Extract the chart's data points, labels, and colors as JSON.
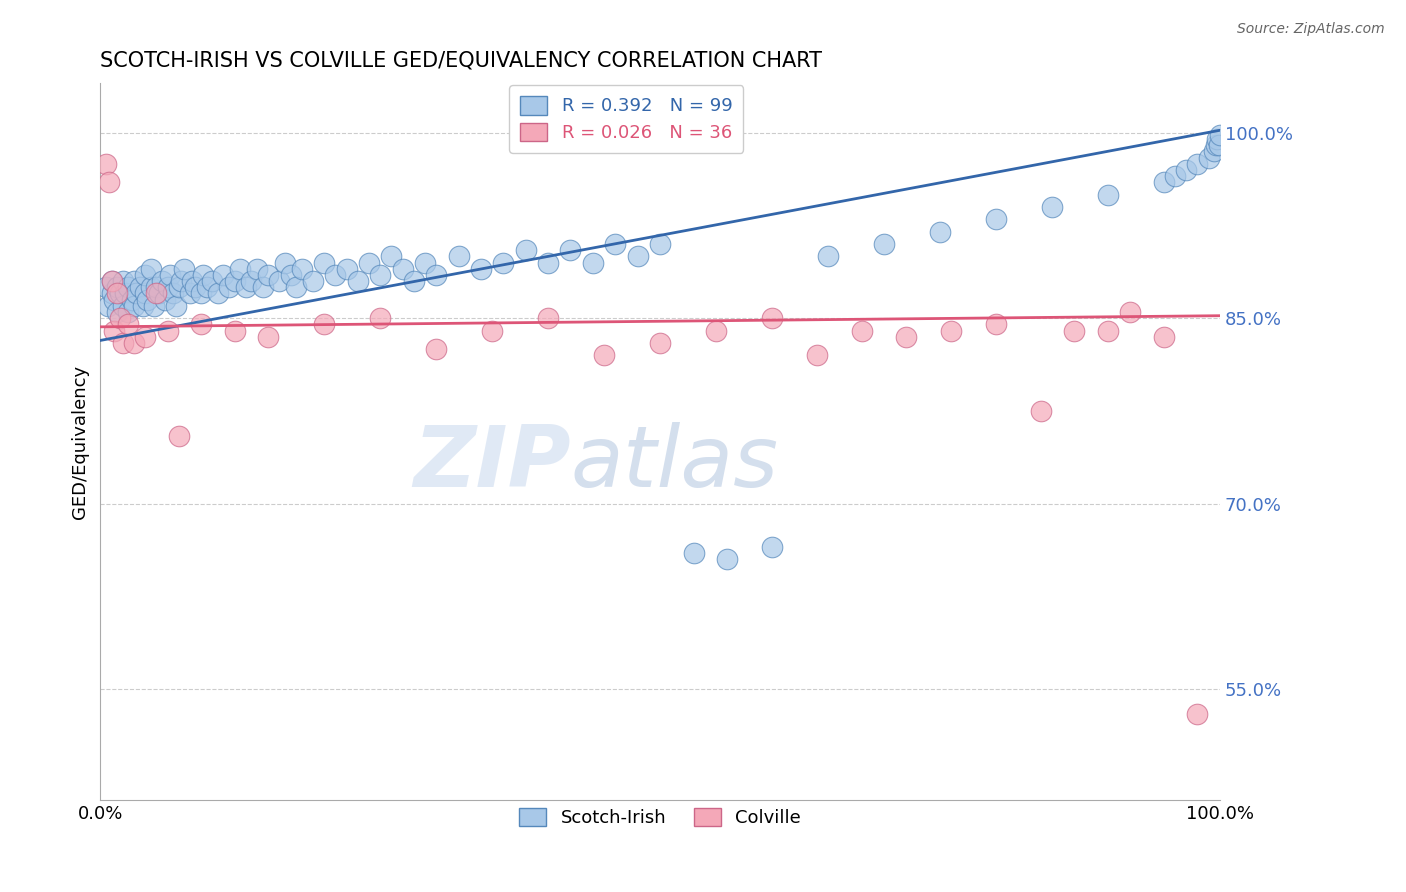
{
  "title": "SCOTCH-IRISH VS COLVILLE GED/EQUIVALENCY CORRELATION CHART",
  "source_text": "Source: ZipAtlas.com",
  "ylabel": "GED/Equivalency",
  "ytick_labels": [
    "55.0%",
    "70.0%",
    "85.0%",
    "100.0%"
  ],
  "ytick_values": [
    0.55,
    0.7,
    0.85,
    1.0
  ],
  "xmin": 0.0,
  "xmax": 1.0,
  "ymin": 0.46,
  "ymax": 1.04,
  "blue_R": 0.392,
  "blue_N": 99,
  "pink_R": 0.026,
  "pink_N": 36,
  "blue_color": "#a8c8e8",
  "pink_color": "#f4a8b8",
  "blue_edge_color": "#5588bb",
  "pink_edge_color": "#cc6688",
  "blue_line_color": "#3366aa",
  "pink_line_color": "#dd5577",
  "legend_label_blue": "Scotch-Irish",
  "legend_label_pink": "Colville",
  "watermark_zip": "ZIP",
  "watermark_atlas": "atlas",
  "title_fontsize": 15,
  "blue_scatter_x": [
    0.005,
    0.007,
    0.01,
    0.01,
    0.012,
    0.015,
    0.015,
    0.018,
    0.02,
    0.02,
    0.022,
    0.025,
    0.025,
    0.028,
    0.03,
    0.03,
    0.032,
    0.035,
    0.038,
    0.04,
    0.04,
    0.042,
    0.045,
    0.045,
    0.048,
    0.05,
    0.052,
    0.055,
    0.058,
    0.06,
    0.062,
    0.065,
    0.068,
    0.07,
    0.072,
    0.075,
    0.08,
    0.082,
    0.085,
    0.09,
    0.092,
    0.095,
    0.1,
    0.105,
    0.11,
    0.115,
    0.12,
    0.125,
    0.13,
    0.135,
    0.14,
    0.145,
    0.15,
    0.16,
    0.165,
    0.17,
    0.175,
    0.18,
    0.19,
    0.2,
    0.21,
    0.22,
    0.23,
    0.24,
    0.25,
    0.26,
    0.27,
    0.28,
    0.29,
    0.3,
    0.32,
    0.34,
    0.36,
    0.38,
    0.4,
    0.42,
    0.44,
    0.46,
    0.48,
    0.5,
    0.53,
    0.56,
    0.6,
    0.65,
    0.7,
    0.75,
    0.8,
    0.85,
    0.9,
    0.95,
    0.96,
    0.97,
    0.98,
    0.99,
    0.995,
    0.997,
    0.998,
    0.999,
    1.0
  ],
  "blue_scatter_y": [
    0.875,
    0.86,
    0.87,
    0.88,
    0.865,
    0.855,
    0.875,
    0.87,
    0.86,
    0.88,
    0.87,
    0.855,
    0.875,
    0.865,
    0.86,
    0.88,
    0.87,
    0.875,
    0.86,
    0.87,
    0.885,
    0.865,
    0.875,
    0.89,
    0.86,
    0.875,
    0.87,
    0.88,
    0.865,
    0.875,
    0.885,
    0.87,
    0.86,
    0.875,
    0.88,
    0.89,
    0.87,
    0.88,
    0.875,
    0.87,
    0.885,
    0.875,
    0.88,
    0.87,
    0.885,
    0.875,
    0.88,
    0.89,
    0.875,
    0.88,
    0.89,
    0.875,
    0.885,
    0.88,
    0.895,
    0.885,
    0.875,
    0.89,
    0.88,
    0.895,
    0.885,
    0.89,
    0.88,
    0.895,
    0.885,
    0.9,
    0.89,
    0.88,
    0.895,
    0.885,
    0.9,
    0.89,
    0.895,
    0.905,
    0.895,
    0.905,
    0.895,
    0.91,
    0.9,
    0.91,
    0.66,
    0.655,
    0.665,
    0.9,
    0.91,
    0.92,
    0.93,
    0.94,
    0.95,
    0.96,
    0.965,
    0.97,
    0.975,
    0.98,
    0.985,
    0.99,
    0.995,
    0.99,
    0.998
  ],
  "pink_scatter_x": [
    0.005,
    0.008,
    0.01,
    0.012,
    0.015,
    0.018,
    0.02,
    0.025,
    0.03,
    0.04,
    0.05,
    0.06,
    0.07,
    0.09,
    0.12,
    0.15,
    0.2,
    0.25,
    0.3,
    0.35,
    0.4,
    0.45,
    0.5,
    0.55,
    0.6,
    0.64,
    0.68,
    0.72,
    0.76,
    0.8,
    0.84,
    0.87,
    0.9,
    0.92,
    0.95,
    0.98
  ],
  "pink_scatter_y": [
    0.975,
    0.96,
    0.88,
    0.84,
    0.87,
    0.85,
    0.83,
    0.845,
    0.83,
    0.835,
    0.87,
    0.84,
    0.755,
    0.845,
    0.84,
    0.835,
    0.845,
    0.85,
    0.825,
    0.84,
    0.85,
    0.82,
    0.83,
    0.84,
    0.85,
    0.82,
    0.84,
    0.835,
    0.84,
    0.845,
    0.775,
    0.84,
    0.84,
    0.855,
    0.835,
    0.53
  ],
  "blue_line_start_y": 0.832,
  "blue_line_end_y": 1.002,
  "pink_line_start_y": 0.843,
  "pink_line_end_y": 0.852
}
